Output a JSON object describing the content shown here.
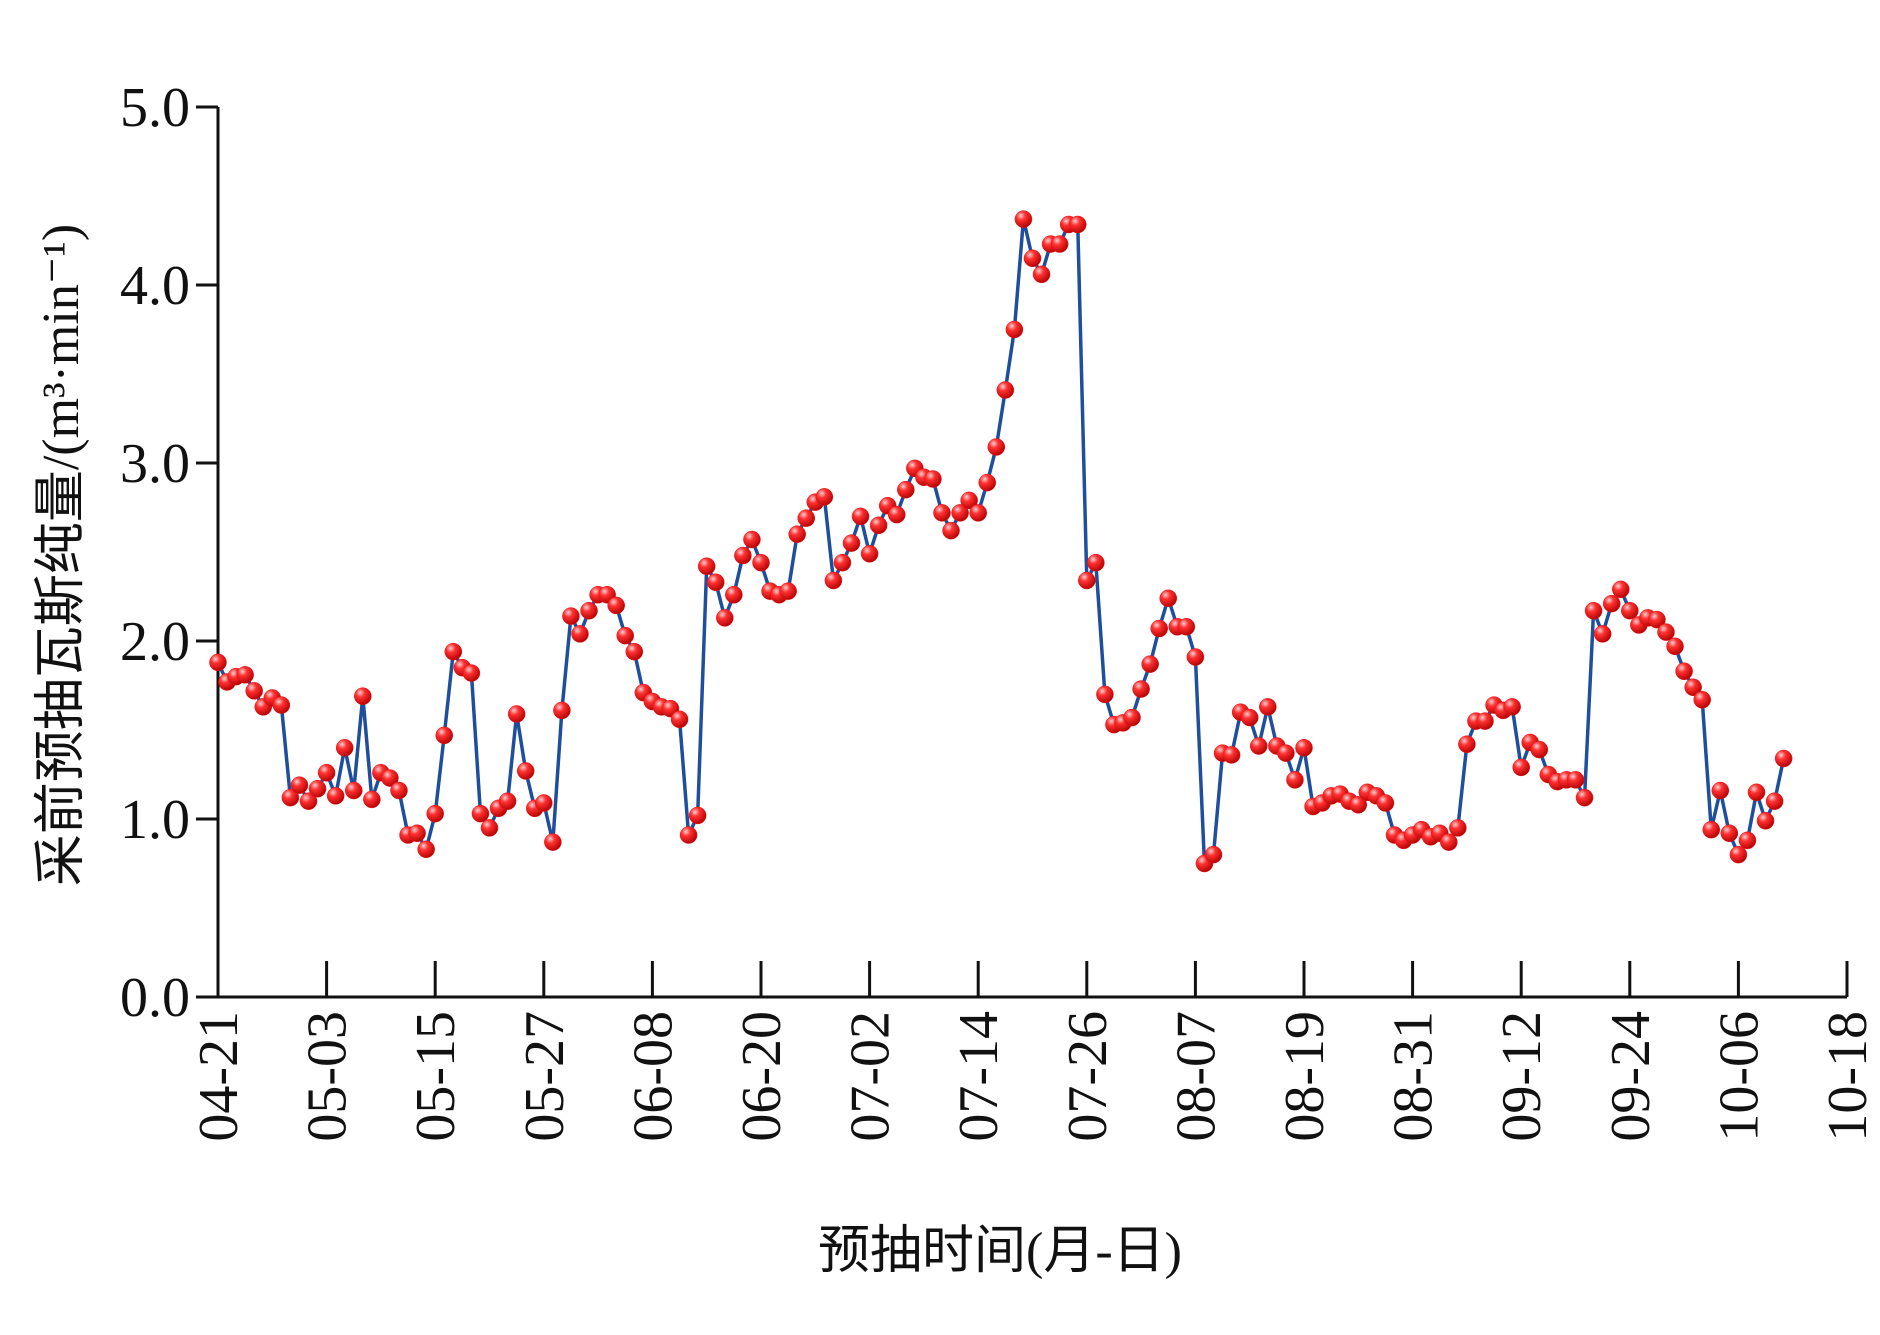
{
  "chart_data": {
    "type": "line",
    "xlabel": "预抽时间(月-日)",
    "ylabel": "采前预抽瓦斯纯量/(m³·min⁻¹)",
    "x": [
      "04-21",
      "04-22",
      "04-23",
      "04-24",
      "04-25",
      "04-26",
      "04-27",
      "04-28",
      "04-29",
      "04-30",
      "05-01",
      "05-02",
      "05-03",
      "05-04",
      "05-05",
      "05-06",
      "05-07",
      "05-08",
      "05-09",
      "05-10",
      "05-11",
      "05-12",
      "05-13",
      "05-14",
      "05-15",
      "05-16",
      "05-17",
      "05-18",
      "05-19",
      "05-20",
      "05-21",
      "05-22",
      "05-23",
      "05-24",
      "05-25",
      "05-26",
      "05-27",
      "05-28",
      "05-29",
      "05-30",
      "05-31",
      "06-01",
      "06-02",
      "06-03",
      "06-04",
      "06-05",
      "06-06",
      "06-07",
      "06-08",
      "06-09",
      "06-10",
      "06-11",
      "06-12",
      "06-13",
      "06-14",
      "06-15",
      "06-16",
      "06-17",
      "06-18",
      "06-19",
      "06-20",
      "06-21",
      "06-22",
      "06-23",
      "06-24",
      "06-25",
      "06-26",
      "06-27",
      "06-28",
      "06-29",
      "06-30",
      "07-01",
      "07-02",
      "07-03",
      "07-04",
      "07-05",
      "07-06",
      "07-07",
      "07-08",
      "07-09",
      "07-10",
      "07-11",
      "07-12",
      "07-13",
      "07-14",
      "07-15",
      "07-16",
      "07-17",
      "07-18",
      "07-19",
      "07-20",
      "07-21",
      "07-22",
      "07-23",
      "07-24",
      "07-25",
      "07-26",
      "07-27",
      "07-28",
      "07-29",
      "07-30",
      "07-31",
      "08-01",
      "08-02",
      "08-03",
      "08-04",
      "08-05",
      "08-06",
      "08-07",
      "08-08",
      "08-09",
      "08-10",
      "08-11",
      "08-12",
      "08-13",
      "08-14",
      "08-15",
      "08-16",
      "08-17",
      "08-18",
      "08-19",
      "08-20",
      "08-21",
      "08-22",
      "08-23",
      "08-24",
      "08-25",
      "08-26",
      "08-27",
      "08-28",
      "08-29",
      "08-30",
      "08-31",
      "09-01",
      "09-02",
      "09-03",
      "09-04",
      "09-05",
      "09-06",
      "09-07",
      "09-08",
      "09-09",
      "09-10",
      "09-11",
      "09-12",
      "09-13",
      "09-14",
      "09-15",
      "09-16",
      "09-17",
      "09-18",
      "09-19",
      "09-20",
      "09-21",
      "09-22",
      "09-23",
      "09-24",
      "09-25",
      "09-26",
      "09-27",
      "09-28",
      "09-29",
      "09-30",
      "10-01",
      "10-02",
      "10-03",
      "10-04",
      "10-05",
      "10-06",
      "10-07",
      "10-08",
      "10-09",
      "10-10",
      "10-11"
    ],
    "series": [
      {
        "color": "#1f4e9c",
        "marker_color": "#e8141b",
        "values": [
          1.88,
          1.77,
          1.8,
          1.81,
          1.72,
          1.63,
          1.68,
          1.64,
          1.12,
          1.19,
          1.1,
          1.17,
          1.26,
          1.13,
          1.4,
          1.16,
          1.69,
          1.11,
          1.26,
          1.23,
          1.16,
          0.91,
          0.92,
          0.83,
          1.03,
          1.47,
          1.94,
          1.85,
          1.82,
          1.03,
          0.95,
          1.06,
          1.1,
          1.59,
          1.27,
          1.06,
          1.09,
          0.87,
          1.61,
          2.14,
          2.04,
          2.17,
          2.26,
          2.26,
          2.2,
          2.03,
          1.94,
          1.71,
          1.66,
          1.63,
          1.62,
          1.56,
          0.91,
          1.02,
          2.42,
          2.33,
          2.13,
          2.26,
          2.48,
          2.57,
          2.44,
          2.28,
          2.26,
          2.28,
          2.6,
          2.69,
          2.78,
          2.81,
          2.34,
          2.44,
          2.55,
          2.7,
          2.49,
          2.65,
          2.76,
          2.71,
          2.85,
          2.97,
          2.92,
          2.91,
          2.72,
          2.62,
          2.72,
          2.79,
          2.72,
          2.89,
          3.09,
          3.41,
          3.75,
          4.37,
          4.15,
          4.06,
          4.23,
          4.23,
          4.34,
          4.34,
          2.34,
          2.44,
          1.7,
          1.53,
          1.54,
          1.57,
          1.73,
          1.87,
          2.07,
          2.24,
          2.08,
          2.08,
          1.91,
          0.75,
          0.8,
          1.37,
          1.36,
          1.6,
          1.57,
          1.41,
          1.63,
          1.41,
          1.37,
          1.22,
          1.4,
          1.07,
          1.09,
          1.13,
          1.14,
          1.1,
          1.08,
          1.15,
          1.13,
          1.09,
          0.91,
          0.88,
          0.91,
          0.94,
          0.9,
          0.92,
          0.87,
          0.95,
          1.42,
          1.55,
          1.55,
          1.64,
          1.61,
          1.63,
          1.29,
          1.43,
          1.39,
          1.25,
          1.21,
          1.22,
          1.22,
          1.12,
          2.17,
          2.04,
          2.21,
          2.29,
          2.17,
          2.09,
          2.13,
          2.12,
          2.05,
          1.97,
          1.83,
          1.74,
          1.67,
          0.94,
          1.16,
          0.92,
          0.8,
          0.88,
          1.15,
          0.99,
          1.1,
          1.34
        ]
      }
    ],
    "xlim": [
      "04-21",
      "10-18"
    ],
    "xticks": [
      "04-21",
      "05-03",
      "05-15",
      "05-27",
      "06-08",
      "06-20",
      "07-02",
      "07-14",
      "07-26",
      "08-07",
      "08-19",
      "08-31",
      "09-12",
      "09-24",
      "10-06",
      "10-18"
    ],
    "ylim": [
      0,
      5
    ],
    "yticks": [
      {
        "value": 0,
        "label": "0.0"
      },
      {
        "value": 1,
        "label": "1.0"
      },
      {
        "value": 2,
        "label": "2.0"
      },
      {
        "value": 3,
        "label": "3.0"
      },
      {
        "value": 4,
        "label": "4.0"
      },
      {
        "value": 5,
        "label": "5.0"
      }
    ],
    "grid": false
  }
}
